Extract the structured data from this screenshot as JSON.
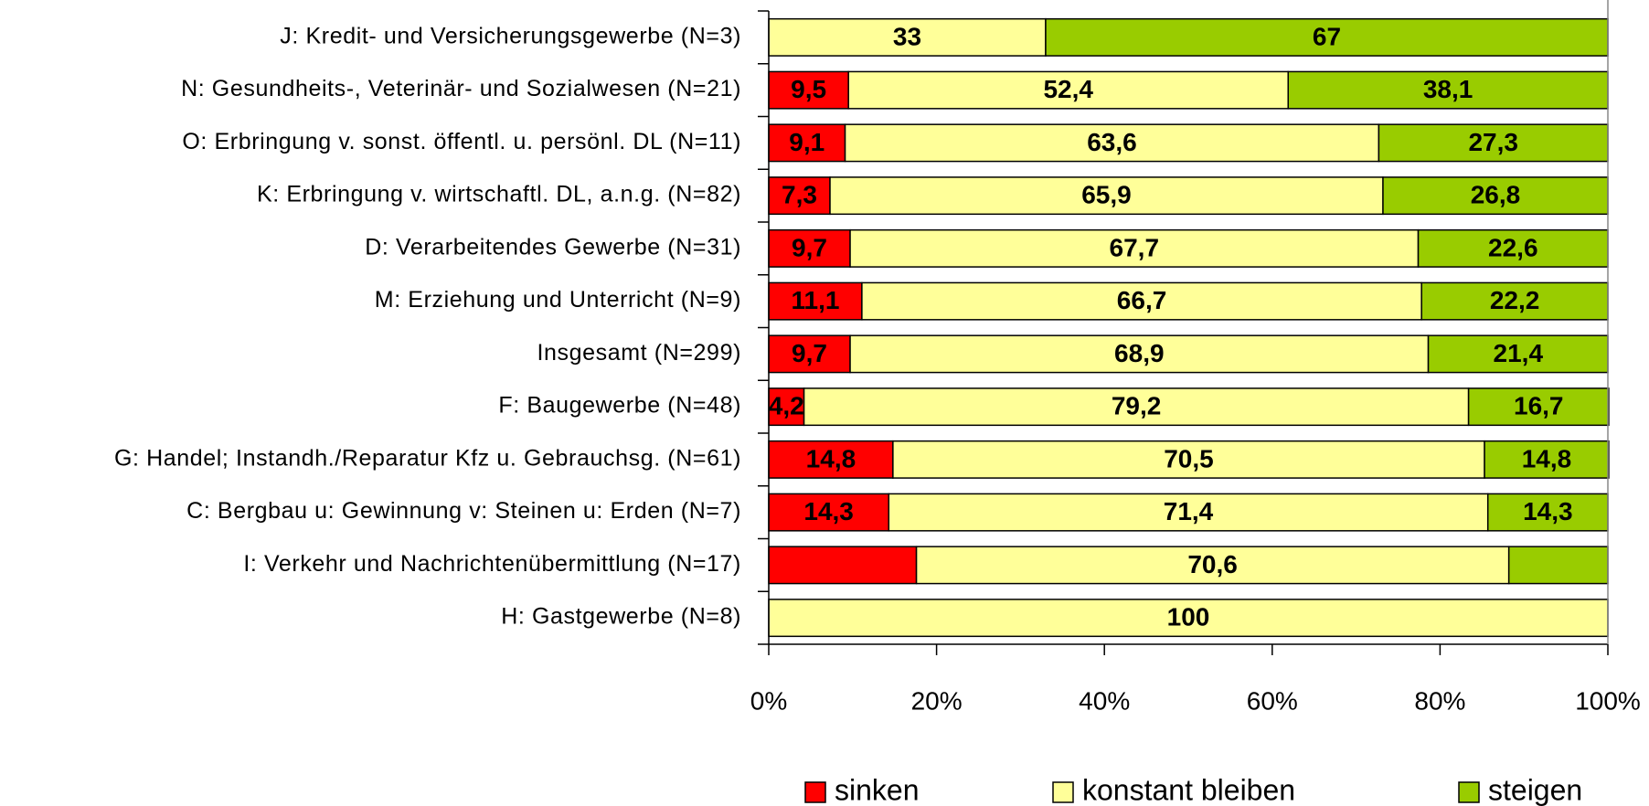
{
  "chart_data": {
    "type": "bar",
    "orientation": "horizontal",
    "stacked": true,
    "categories": [
      "J: Kredit- und Versicherungsgewerbe (N=3)",
      "N: Gesundheits-, Veterinär- und Sozialwesen (N=21)",
      "O: Erbringung v. sonst. öffentl. u. persönl. DL (N=11)",
      "K: Erbringung v. wirtschaftl. DL, a.n.g. (N=82)",
      "D: Verarbeitendes Gewerbe (N=31)",
      "M: Erziehung und Unterricht (N=9)",
      "Insgesamt (N=299)",
      "F: Baugewerbe (N=48)",
      "G: Handel; Instandh./Reparatur Kfz u. Gebrauchsg. (N=61)",
      "C: Bergbau u: Gewinnung v: Steinen u: Erden (N=7)",
      "I: Verkehr und Nachrichtenübermittlung (N=17)",
      "H: Gastgewerbe (N=8)"
    ],
    "series": [
      {
        "name": "sinken",
        "color": "#ff0000",
        "values": [
          0,
          9.5,
          9.1,
          7.3,
          9.7,
          11.1,
          9.7,
          4.2,
          14.8,
          14.3,
          17.6,
          0
        ],
        "value_labels": [
          null,
          "9,5",
          "9,1",
          "7,3",
          "9,7",
          "11,1",
          "9,7",
          "4,2",
          "14,8",
          "14,3",
          null,
          null
        ]
      },
      {
        "name": "konstant bleiben",
        "color": "#ffff99",
        "values": [
          33,
          52.4,
          63.6,
          65.9,
          67.7,
          66.7,
          68.9,
          79.2,
          70.5,
          71.4,
          70.6,
          100
        ],
        "value_labels": [
          "33",
          "52,4",
          "63,6",
          "65,9",
          "67,7",
          "66,7",
          "68,9",
          "79,2",
          "70,5",
          "71,4",
          "70,6",
          "100"
        ]
      },
      {
        "name": "steigen",
        "color": "#99cc00",
        "values": [
          67,
          38.1,
          27.3,
          26.8,
          22.6,
          22.2,
          21.4,
          16.7,
          14.8,
          14.3,
          11.8,
          0
        ],
        "value_labels": [
          "67",
          "38,1",
          "27,3",
          "26,8",
          "22,6",
          "22,2",
          "21,4",
          "16,7",
          "14,8",
          "14,3",
          null,
          null
        ]
      }
    ],
    "xlim": [
      0,
      100
    ],
    "xticks": [
      {
        "value": 0,
        "label": "0%"
      },
      {
        "value": 20,
        "label": "20%"
      },
      {
        "value": 40,
        "label": "40%"
      },
      {
        "value": 60,
        "label": "60%"
      },
      {
        "value": 80,
        "label": "80%"
      },
      {
        "value": 100,
        "label": "100%"
      }
    ],
    "legend": "bottom"
  }
}
